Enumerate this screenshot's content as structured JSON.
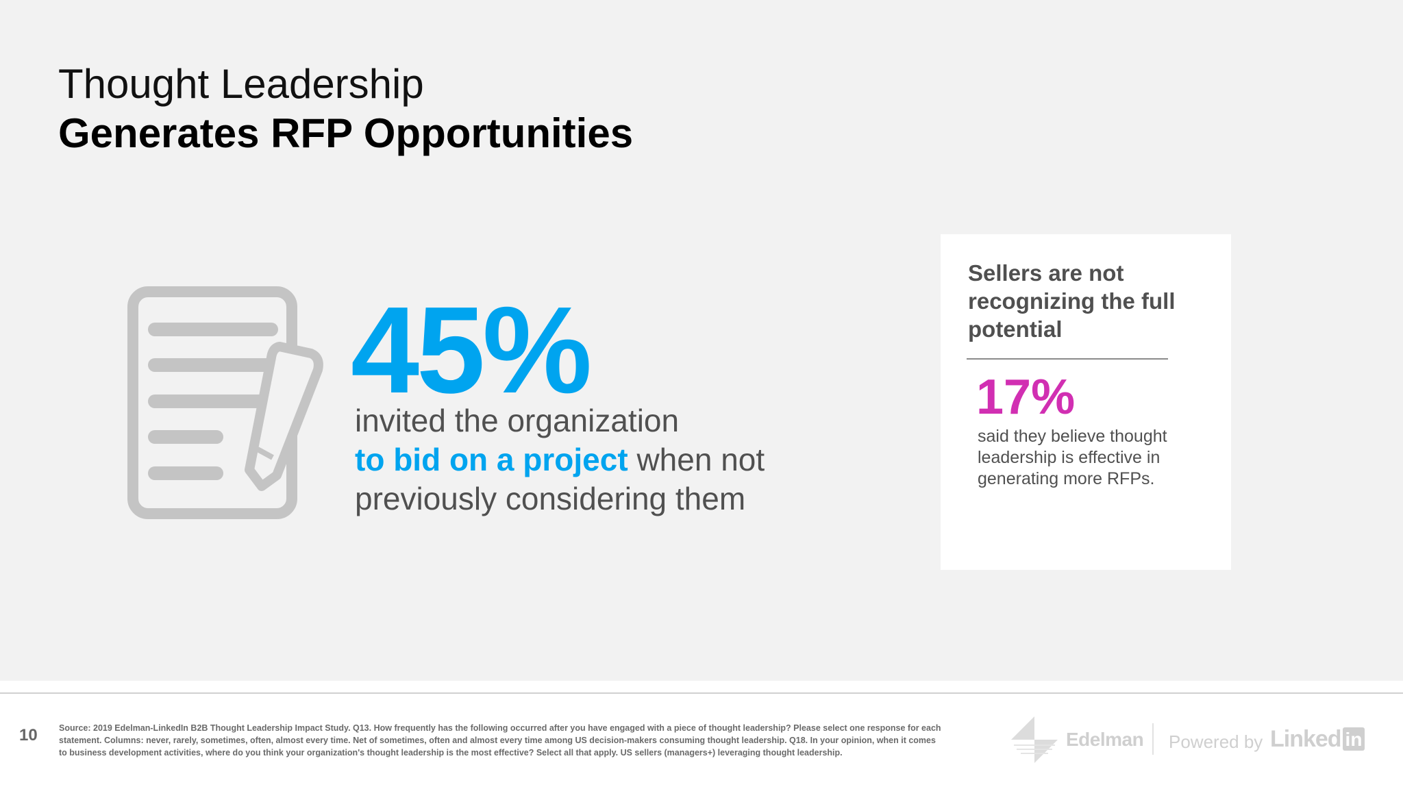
{
  "title": {
    "line1": "Thought Leadership",
    "line2": "Generates RFP Opportunities"
  },
  "main_stat": {
    "value": "45%",
    "line1": "invited the organization",
    "highlight": "to bid on a project",
    "line2_rest": " when not",
    "line3": "previously considering them"
  },
  "callout": {
    "heading": "Sellers are not recognizing the full potential",
    "value": "17%",
    "text": "said they believe thought leadership is effective in generating more RFPs."
  },
  "footer": {
    "page_number": "10",
    "source": "Source: 2019 Edelman-LinkedIn B2B Thought Leadership Impact Study. Q13. How frequently has the following occurred after you have engaged with a piece of thought leadership? Please select one response for each statement. Columns: never, rarely, sometimes, often, almost every time. Net of sometimes, often and almost every time among US decision-makers consuming thought leadership. Q18. In your opinion, when it comes to business development activities, where do you think your organization's thought leadership is the most effective? Select all that apply. US sellers (managers+) leveraging thought leadership.",
    "logo_edelman": "Edelman",
    "powered_by": "Powered by",
    "logo_linked": "Linked",
    "logo_in": "in"
  },
  "colors": {
    "accent_blue": "#00a4ef",
    "accent_magenta": "#d12fb2",
    "body_gray": "#505050",
    "icon_gray": "#c4c4c4"
  },
  "icons": {
    "main": "document-pencil-icon",
    "edelman": "edelman-logo-icon"
  }
}
